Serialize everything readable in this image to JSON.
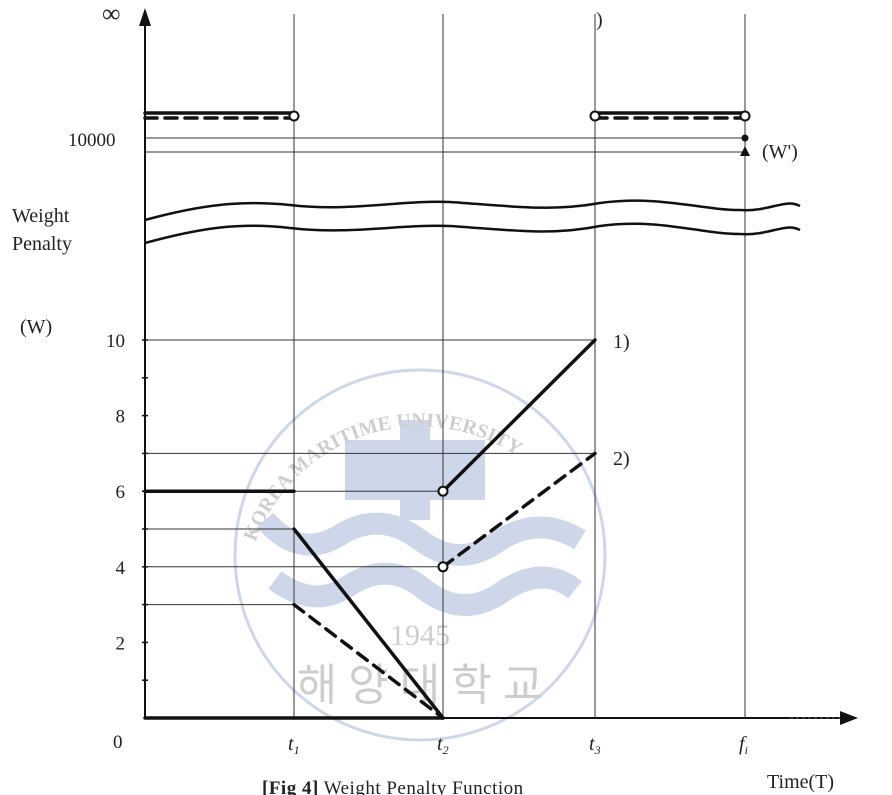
{
  "chart_data": {
    "type": "line",
    "caption_bold": "[Fig 4]",
    "caption_rest": " Weight Penalty Function",
    "ylabel_line1": "Weight",
    "ylabel_line2": "Penalty",
    "ylabel_unit": "(W)",
    "xlabel": "Time(T)",
    "infinity_label": "∞",
    "origin_label": "0",
    "watermark_arc": "KOREA MARITIME UNIVERSITY",
    "watermark_year": "1945",
    "watermark_korean": "해 양 대 학 교",
    "x_ticks": [
      {
        "id": "t1",
        "label": "t",
        "sub": "1"
      },
      {
        "id": "t2",
        "label": "t",
        "sub": "2"
      },
      {
        "id": "t3",
        "label": "t",
        "sub": "3"
      },
      {
        "id": "fi",
        "label": "f",
        "sub": "i"
      }
    ],
    "y_ticks": [
      0,
      2,
      4,
      6,
      8,
      10
    ],
    "y_top_tick": 10000,
    "ylim": [
      0,
      10
    ],
    "series": [
      {
        "name": "1)",
        "style": "solid",
        "segments": [
          {
            "points": [
              [
                "0",
                6
              ],
              [
                "t1",
                6
              ]
            ],
            "end_open": false
          },
          {
            "points": [
              [
                "t1",
                5
              ],
              [
                "t2",
                0
              ]
            ]
          },
          {
            "points": [
              [
                "t2",
                6
              ],
              [
                "t3",
                10
              ]
            ],
            "start_open": true
          }
        ],
        "high_value_level": "above 10000",
        "end_marker": "dot"
      },
      {
        "name": "2)",
        "style": "dashed",
        "segments": [
          {
            "points": [
              [
                "t1",
                3
              ],
              [
                "t2",
                0
              ]
            ]
          },
          {
            "points": [
              [
                "t2",
                4
              ],
              [
                "t3",
                7
              ]
            ],
            "start_open": true
          }
        ],
        "end_marker": "triangle"
      }
    ],
    "right_annotation": "(W')",
    "series_label_1": "1)",
    "series_label_2": "2)"
  }
}
